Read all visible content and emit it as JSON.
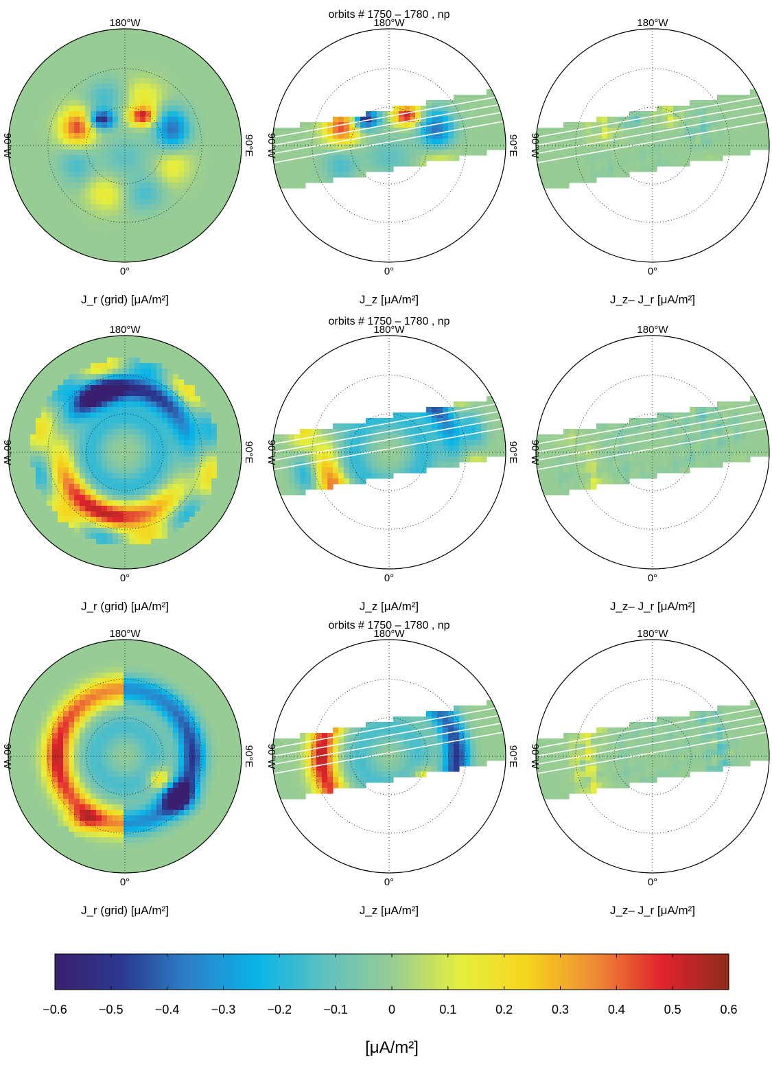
{
  "figure": {
    "row_title": "orbits # 1750 – 1780 ,  np",
    "direction_labels": {
      "top": "180°W",
      "bottom": "0°",
      "left": "90°W",
      "right": "90°E"
    },
    "panel_labels": {
      "grid": "J_r (grid) [μA/m²]",
      "jz": "J_z [μA/m²]",
      "diff": "J_z– J_r [μA/m²]"
    }
  },
  "chart_data": {
    "type": "heatmap",
    "projection": "polar",
    "rows": 3,
    "columns": [
      {
        "key": "grid",
        "label": "J_r (grid) [μA/m²]"
      },
      {
        "key": "jz",
        "label": "J_z [μA/m²]"
      },
      {
        "key": "diff",
        "label": "J_z– J_r [μA/m²]"
      }
    ],
    "colorbar": {
      "min": -0.6,
      "max": 0.6,
      "ticks": [
        -0.6,
        -0.5,
        -0.4,
        -0.3,
        -0.2,
        -0.1,
        0,
        0.1,
        0.2,
        0.3,
        0.4,
        0.5,
        0.6
      ],
      "tick_labels": [
        "−0.6",
        "−0.5",
        "−0.4",
        "−0.3",
        "−0.2",
        "−0.1",
        "0",
        "0.1",
        "0.2",
        "0.3",
        "0.4",
        "0.5",
        "0.6"
      ],
      "label": "[μA/m²]",
      "colormap": [
        "#3a1f6e",
        "#2a3990",
        "#2c82c8",
        "#08b4e8",
        "#5fc0c0",
        "#97cc95",
        "#e4ee40",
        "#f6d51c",
        "#ef8c35",
        "#e1242d",
        "#8e2a1e"
      ]
    },
    "features": {
      "grid": [
        {
          "row": 1,
          "lat_range": [
            70,
            90
          ],
          "value_range": [
            -0.5,
            0.45
          ]
        },
        {
          "row": 2,
          "lat_range": [
            60,
            90
          ],
          "value_range": [
            -0.55,
            0.5
          ]
        },
        {
          "row": 3,
          "lat_range": [
            60,
            90
          ],
          "value_range": [
            -0.6,
            0.55
          ]
        }
      ]
    }
  }
}
